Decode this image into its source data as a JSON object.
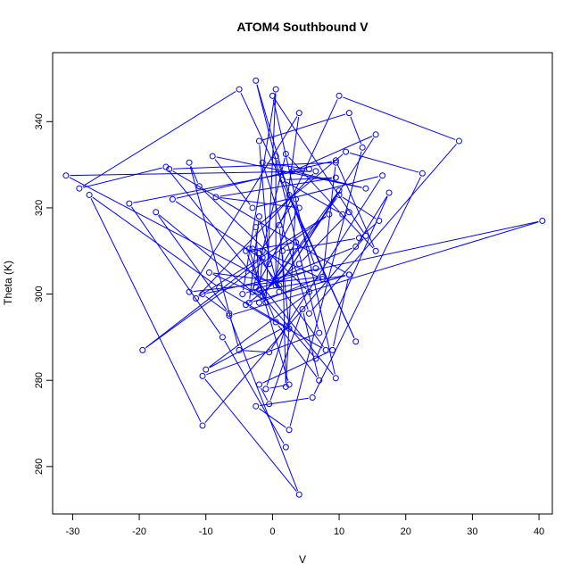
{
  "chart_data": {
    "type": "line",
    "title": "ATOM4 Southbound V",
    "xlabel": "V",
    "ylabel": "Theta (K)",
    "xlim": [
      -33,
      42
    ],
    "ylim": [
      249,
      356
    ],
    "xticks": [
      -30,
      -20,
      -10,
      0,
      10,
      20,
      30,
      40
    ],
    "yticks": [
      260,
      280,
      300,
      320,
      340
    ],
    "grid": false,
    "legend": "none",
    "markers": "open-circle",
    "color": "#0000ff",
    "series": [
      {
        "x": [
          2.0,
          -7.5,
          -21.5,
          5.5,
          -1.5,
          5.5,
          28.0,
          10.0,
          1.0,
          2.5,
          -8.0,
          -27.5,
          -10.5,
          14.0,
          0.0,
          9.5,
          -16.0,
          -29.0,
          -5.0,
          12.5,
          2.5,
          -2.5,
          7.0,
          -10.5,
          4.0,
          -6.5,
          40.5,
          -10.5,
          -6.5,
          -17.5,
          -1.0,
          0.5,
          -4.5,
          6.5,
          0.5,
          0.5,
          -31.0,
          6.5,
          -11.5,
          8.5,
          -19.5,
          -1.5,
          -2.0,
          -2.5,
          11.0,
          22.5,
          6.0,
          -2.5,
          2.5,
          13.5,
          11.5,
          -2.0,
          -0.5,
          -15.0,
          9.5,
          15.5,
          2.0,
          -3.0,
          11.5,
          -15.5,
          9.5,
          7.5,
          -1.5,
          -3.5,
          2.5,
          -1.0,
          2.0,
          -10.0,
          5.5,
          -11.0,
          -12.5,
          -5.0,
          -0.5,
          16.5,
          -3.0,
          -9.0,
          14.0,
          3.0,
          15.5,
          1.0,
          10.0,
          -1.5,
          -9.5,
          0.5,
          4.0,
          -12.5,
          7.5,
          -2.0,
          3.5,
          -4.0,
          0.5,
          7.0,
          4.5,
          -0.5,
          -2.0,
          9.0,
          11.5,
          -3.5,
          -2.0,
          1.0,
          -2.0,
          3.5,
          2.0,
          1.5,
          13.0,
          16.0,
          10.0,
          0.5,
          12.5,
          17.5,
          6.5,
          -2.5,
          4.0,
          -8.5,
          9.5,
          1.5,
          10.5,
          11.5,
          4.0,
          -4.0,
          8.0,
          -3.0
        ],
        "y": [
          264.5,
          290.0,
          321.0,
          329.0,
          330.5,
          295.5,
          335.5,
          346.0,
          316.0,
          292.0,
          301.5,
          323.0,
          269.5,
          313.5,
          346.0,
          280.5,
          329.5,
          324.5,
          347.5,
          289.0,
          323.0,
          349.5,
          291.0,
          281.0,
          253.5,
          295.0,
          317.0,
          300.0,
          295.5,
          319.0,
          298.0,
          347.5,
          300.0,
          306.0,
          332.0,
          302.0,
          327.5,
          328.5,
          299.0,
          318.5,
          287.0,
          308.5,
          301.0,
          315.5,
          333.0,
          328.0,
          276.0,
          274.0,
          268.5,
          334.0,
          342.0,
          335.5,
          307.0,
          322.0,
          331.0,
          310.0,
          332.5,
          300.5,
          304.5,
          329.0,
          330.5,
          303.5,
          310.0,
          310.5,
          279.0,
          278.0,
          292.5,
          282.5,
          300.5,
          325.0,
          330.5,
          287.0,
          286.5,
          327.5,
          320.0,
          332.0,
          324.5,
          328.5,
          337.0,
          302.0,
          324.0,
          299.5,
          305.0,
          303.0,
          342.0,
          300.5,
          304.0,
          298.0,
          312.0,
          310.0,
          293.5,
          280.0,
          296.5,
          274.5,
          279.0,
          287.0,
          304.5,
          298.0,
          318.0,
          300.5,
          309.5,
          322.0,
          278.5,
          310.0,
          313.0,
          317.0,
          323.0,
          303.5,
          311.0,
          323.5,
          285.0,
          301.5,
          320.0,
          322.5,
          327.0,
          326.5,
          318.5,
          319.0,
          307.0,
          297.5,
          287.0,
          310.5
        ]
      }
    ]
  }
}
